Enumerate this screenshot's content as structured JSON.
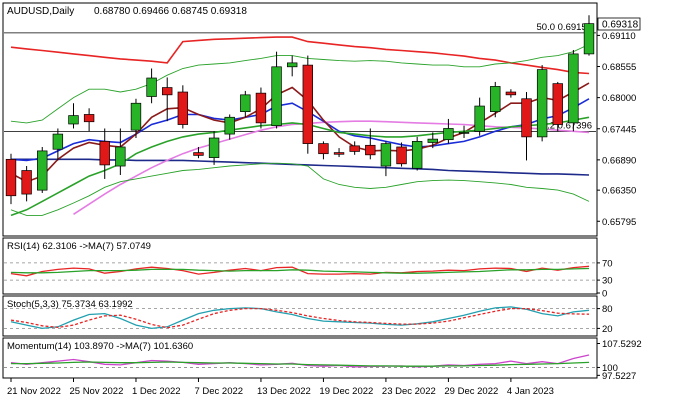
{
  "chart_data": {
    "type": "candlestick",
    "symbol_label": "AUDUSD,Daily",
    "ohlc_label": "0.68780 0.69466 0.68745 0.69318",
    "current_price_label": "0.69318",
    "x_ticks": [
      "21 Nov 2022",
      "25 Nov 2022",
      "1 Dec 2022",
      "7 Dec 2022",
      "13 Dec 2022",
      "19 Dec 2022",
      "23 Dec 2022",
      "29 Dec 2022",
      "4 Jan 2023"
    ],
    "main": {
      "y_ticks": [
        "0.69110",
        "0.68555",
        "0.68000",
        "0.67445",
        "0.66890",
        "0.66350",
        "0.65795"
      ],
      "ylim": [
        0.6555,
        0.6967
      ],
      "fib_levels": [
        {
          "label": "50.0 0.69155",
          "value": 0.69155
        },
        {
          "label": "38.2 0.67396",
          "value": 0.67396
        }
      ],
      "candles": [
        {
          "o": 0.669,
          "h": 0.67,
          "l": 0.661,
          "c": 0.6625
        },
        {
          "o": 0.667,
          "h": 0.6678,
          "l": 0.6615,
          "c": 0.6628
        },
        {
          "o": 0.6635,
          "h": 0.6712,
          "l": 0.663,
          "c": 0.6705
        },
        {
          "o": 0.6708,
          "h": 0.6745,
          "l": 0.6688,
          "c": 0.6735
        },
        {
          "o": 0.6753,
          "h": 0.679,
          "l": 0.6745,
          "c": 0.6768
        },
        {
          "o": 0.677,
          "h": 0.6781,
          "l": 0.674,
          "c": 0.6757
        },
        {
          "o": 0.6722,
          "h": 0.6745,
          "l": 0.6655,
          "c": 0.668
        },
        {
          "o": 0.6678,
          "h": 0.6745,
          "l": 0.6662,
          "c": 0.6712
        },
        {
          "o": 0.6742,
          "h": 0.6798,
          "l": 0.6728,
          "c": 0.679
        },
        {
          "o": 0.6802,
          "h": 0.6852,
          "l": 0.679,
          "c": 0.6835
        },
        {
          "o": 0.6818,
          "h": 0.6836,
          "l": 0.6758,
          "c": 0.6805
        },
        {
          "o": 0.681,
          "h": 0.6822,
          "l": 0.6745,
          "c": 0.6752
        },
        {
          "o": 0.6702,
          "h": 0.6712,
          "l": 0.6692,
          "c": 0.6697
        },
        {
          "o": 0.6693,
          "h": 0.674,
          "l": 0.668,
          "c": 0.6728
        },
        {
          "o": 0.6735,
          "h": 0.677,
          "l": 0.6725,
          "c": 0.6765
        },
        {
          "o": 0.6775,
          "h": 0.6812,
          "l": 0.6765,
          "c": 0.6805
        },
        {
          "o": 0.6808,
          "h": 0.6818,
          "l": 0.6745,
          "c": 0.6755
        },
        {
          "o": 0.675,
          "h": 0.6882,
          "l": 0.6745,
          "c": 0.6855
        },
        {
          "o": 0.6855,
          "h": 0.6875,
          "l": 0.6838,
          "c": 0.6862
        },
        {
          "o": 0.6858,
          "h": 0.6875,
          "l": 0.67,
          "c": 0.6718
        },
        {
          "o": 0.6718,
          "h": 0.6722,
          "l": 0.669,
          "c": 0.67
        },
        {
          "o": 0.6702,
          "h": 0.671,
          "l": 0.6694,
          "c": 0.6699
        },
        {
          "o": 0.6714,
          "h": 0.6722,
          "l": 0.6698,
          "c": 0.6704
        },
        {
          "o": 0.6715,
          "h": 0.6745,
          "l": 0.669,
          "c": 0.6698
        },
        {
          "o": 0.6678,
          "h": 0.6722,
          "l": 0.666,
          "c": 0.6718
        },
        {
          "o": 0.6712,
          "h": 0.672,
          "l": 0.6677,
          "c": 0.6682
        },
        {
          "o": 0.6674,
          "h": 0.673,
          "l": 0.667,
          "c": 0.6722
        },
        {
          "o": 0.672,
          "h": 0.6738,
          "l": 0.671,
          "c": 0.6726
        },
        {
          "o": 0.6725,
          "h": 0.6762,
          "l": 0.6718,
          "c": 0.6745
        },
        {
          "o": 0.6738,
          "h": 0.675,
          "l": 0.6728,
          "c": 0.6738
        },
        {
          "o": 0.674,
          "h": 0.68,
          "l": 0.6732,
          "c": 0.6785
        },
        {
          "o": 0.6775,
          "h": 0.6828,
          "l": 0.6765,
          "c": 0.682
        },
        {
          "o": 0.681,
          "h": 0.6815,
          "l": 0.68,
          "c": 0.6805
        },
        {
          "o": 0.6798,
          "h": 0.681,
          "l": 0.6688,
          "c": 0.673
        },
        {
          "o": 0.673,
          "h": 0.6858,
          "l": 0.6722,
          "c": 0.685
        },
        {
          "o": 0.6825,
          "h": 0.6828,
          "l": 0.674,
          "c": 0.6752
        },
        {
          "o": 0.6755,
          "h": 0.6885,
          "l": 0.674,
          "c": 0.6878
        },
        {
          "o": 0.6878,
          "h": 0.6947,
          "l": 0.6875,
          "c": 0.6932
        }
      ],
      "lines": [
        {
          "name": "red",
          "color": "#e82424",
          "values": [
            0.689,
            0.6887,
            0.6884,
            0.6881,
            0.6878,
            0.6875,
            0.6872,
            0.6869,
            0.6867,
            0.6865,
            0.6862,
            0.69,
            0.6902,
            0.6904,
            0.6905,
            0.6906,
            0.6907,
            0.6908,
            0.6908,
            0.69,
            0.6897,
            0.6894,
            0.6891,
            0.6889,
            0.6886,
            0.6884,
            0.6882,
            0.688,
            0.6877,
            0.6874,
            0.687,
            0.6867,
            0.6862,
            0.6858,
            0.6854,
            0.685,
            0.6845,
            0.6843
          ]
        },
        {
          "name": "navy",
          "color": "#1e2a8a",
          "values": [
            0.669,
            0.669,
            0.669,
            0.669,
            0.669,
            0.669,
            0.6689,
            0.6689,
            0.6688,
            0.6688,
            0.6688,
            0.6688,
            0.6687,
            0.6686,
            0.6685,
            0.6684,
            0.6683,
            0.6682,
            0.6681,
            0.668,
            0.6679,
            0.6678,
            0.6677,
            0.6676,
            0.6675,
            0.6674,
            0.6673,
            0.6672,
            0.667,
            0.6669,
            0.6668,
            0.6667,
            0.6666,
            0.6665,
            0.6664,
            0.6664,
            0.6663,
            0.6662
          ]
        },
        {
          "name": "violet",
          "color": "#e47ce4",
          "values": [
            null,
            null,
            null,
            null,
            0.6592,
            0.661,
            0.6628,
            0.6645,
            0.666,
            0.6675,
            0.6688,
            0.67,
            0.671,
            0.6718,
            0.6726,
            0.6734,
            0.6742,
            0.6748,
            0.6752,
            0.6754,
            0.6756,
            0.6757,
            0.6758,
            0.6758,
            0.6757,
            0.6756,
            0.6755,
            0.6754,
            0.6753,
            0.6752,
            0.675,
            0.6748,
            0.6747,
            0.6746,
            0.6744,
            0.6742,
            0.674,
            0.6738
          ]
        },
        {
          "name": "blue",
          "color": "#1a2cd8",
          "values": [
            0.669,
            0.6688,
            0.6692,
            0.6705,
            0.6718,
            0.6725,
            0.6722,
            0.672,
            0.6735,
            0.6752,
            0.676,
            0.677,
            0.677,
            0.6763,
            0.676,
            0.6765,
            0.677,
            0.6785,
            0.679,
            0.6775,
            0.6758,
            0.674,
            0.6732,
            0.6728,
            0.6722,
            0.6716,
            0.6712,
            0.6714,
            0.6718,
            0.6722,
            0.673,
            0.674,
            0.6748,
            0.6752,
            0.6762,
            0.6768,
            0.6782,
            0.6798
          ]
        },
        {
          "name": "maroon",
          "color": "#8b1a1a",
          "values": [
            0.6665,
            0.665,
            0.666,
            0.669,
            0.671,
            0.672,
            0.6715,
            0.6712,
            0.6735,
            0.6765,
            0.678,
            0.6782,
            0.677,
            0.676,
            0.6755,
            0.6765,
            0.678,
            0.6805,
            0.6818,
            0.6795,
            0.676,
            0.673,
            0.6712,
            0.6705,
            0.6706,
            0.6705,
            0.6708,
            0.6715,
            0.6728,
            0.6738,
            0.6755,
            0.6772,
            0.679,
            0.679,
            0.68,
            0.6795,
            0.681,
            0.6826
          ]
        },
        {
          "name": "green",
          "color": "#2aa22a",
          "values": [
            0.659,
            0.66,
            0.6615,
            0.663,
            0.6645,
            0.666,
            0.667,
            0.6682,
            0.67,
            0.6712,
            0.6722,
            0.673,
            0.6735,
            0.6738,
            0.6742,
            0.6746,
            0.675,
            0.6752,
            0.6755,
            0.6752,
            0.6745,
            0.6738,
            0.6735,
            0.6732,
            0.673,
            0.673,
            0.6732,
            0.6735,
            0.6738,
            0.674,
            0.6742,
            0.6745,
            0.6748,
            0.675,
            0.6752,
            0.6755,
            0.676,
            0.6765
          ]
        },
        {
          "name": "bb-upper",
          "color": "#2aa22a",
          "values": [
            0.6758,
            0.6755,
            0.676,
            0.678,
            0.68,
            0.6815,
            0.6815,
            0.681,
            0.6815,
            0.6825,
            0.684,
            0.6852,
            0.6858,
            0.686,
            0.6862,
            0.6866,
            0.687,
            0.6875,
            0.6875,
            0.687,
            0.6868,
            0.6866,
            0.6865,
            0.6866,
            0.6865,
            0.6862,
            0.686,
            0.6858,
            0.6858,
            0.6855,
            0.6855,
            0.686,
            0.6862,
            0.6866,
            0.6872,
            0.6875,
            0.6882,
            0.6895
          ]
        },
        {
          "name": "bb-lower",
          "color": "#2aa22a",
          "values": [
            0.66,
            0.659,
            0.659,
            0.66,
            0.6612,
            0.6625,
            0.664,
            0.665,
            0.6655,
            0.666,
            0.6665,
            0.667,
            0.6672,
            0.6675,
            0.6678,
            0.668,
            0.6682,
            0.6683,
            0.6682,
            0.6678,
            0.6655,
            0.6645,
            0.664,
            0.6638,
            0.664,
            0.6645,
            0.665,
            0.6652,
            0.6653,
            0.6652,
            0.665,
            0.6648,
            0.6645,
            0.664,
            0.6638,
            0.6635,
            0.6628,
            0.6615
          ]
        }
      ]
    },
    "rsi": {
      "label": "RSI(14) 62.3106  ->MA(7) 57.0749",
      "y_ticks": [
        "70",
        "30",
        "0"
      ],
      "ylim": [
        0,
        100
      ],
      "levels": [
        70,
        30
      ],
      "series": [
        {
          "name": "RSI",
          "color": "#e82424",
          "values": [
            45,
            40,
            50,
            55,
            58,
            56,
            46,
            50,
            56,
            60,
            57,
            52,
            44,
            48,
            53,
            57,
            52,
            59,
            60,
            45,
            44,
            44,
            45,
            44,
            48,
            47,
            50,
            51,
            53,
            52,
            56,
            58,
            57,
            50,
            58,
            53,
            59,
            62
          ]
        },
        {
          "name": "MA",
          "color": "#2aa22a",
          "values": [
            48,
            47,
            47,
            48,
            50,
            52,
            52,
            52,
            53,
            55,
            55,
            55,
            53,
            52,
            51,
            52,
            52,
            52,
            54,
            53,
            51,
            50,
            49,
            48,
            47,
            46,
            46,
            47,
            48,
            49,
            50,
            52,
            54,
            54,
            55,
            55,
            56,
            57
          ]
        }
      ]
    },
    "stoch": {
      "label": "Stoch(5,3,3) 75.3734 63.1992",
      "y_ticks": [
        "80",
        "20"
      ],
      "ylim": [
        0,
        100
      ],
      "levels": [
        80,
        20
      ],
      "series": [
        {
          "name": "Main",
          "color": "#22a0b0",
          "values": [
            40,
            30,
            20,
            25,
            45,
            62,
            65,
            50,
            30,
            20,
            25,
            45,
            65,
            75,
            80,
            82,
            80,
            70,
            62,
            50,
            42,
            40,
            38,
            36,
            32,
            30,
            34,
            40,
            50,
            60,
            72,
            82,
            85,
            78,
            65,
            58,
            70,
            75
          ]
        },
        {
          "name": "Signal",
          "color": "#e82424",
          "values": [
            45,
            38,
            28,
            23,
            30,
            45,
            58,
            60,
            48,
            32,
            22,
            30,
            48,
            65,
            75,
            80,
            80,
            75,
            68,
            58,
            50,
            44,
            40,
            38,
            35,
            33,
            33,
            36,
            42,
            52,
            62,
            72,
            80,
            80,
            74,
            66,
            64,
            63
          ]
        }
      ]
    },
    "momentum": {
      "label": "Momentum(14) 103.8970  ->MA(7) 101.6360",
      "y_ticks": [
        "107.5292",
        "100",
        "97.5227"
      ],
      "ylim": [
        97.0,
        108.0
      ],
      "levels": [
        100
      ],
      "series": [
        {
          "name": "Momentum",
          "color": "#cc44cc",
          "values": [
            101.5,
            101.0,
            101.5,
            102.0,
            102.5,
            101.8,
            101.0,
            100.8,
            101.5,
            102.2,
            102.0,
            101.6,
            101.0,
            101.2,
            101.5,
            101.2,
            100.8,
            101.0,
            101.3,
            100.6,
            100.4,
            100.6,
            100.2,
            100.3,
            100.4,
            100.5,
            100.2,
            100.4,
            100.8,
            100.6,
            101.0,
            101.2,
            102.0,
            101.2,
            101.8,
            101.2,
            102.8,
            103.9
          ]
        },
        {
          "name": "MA",
          "color": "#2aa22a",
          "values": [
            101.2,
            101.2,
            101.3,
            101.4,
            101.6,
            101.7,
            101.6,
            101.5,
            101.5,
            101.6,
            101.7,
            101.6,
            101.5,
            101.4,
            101.4,
            101.3,
            101.2,
            101.1,
            101.1,
            100.9,
            100.8,
            100.7,
            100.6,
            100.5,
            100.5,
            100.4,
            100.4,
            100.4,
            100.5,
            100.5,
            100.6,
            100.7,
            100.9,
            101.0,
            101.1,
            101.2,
            101.4,
            101.6
          ]
        }
      ]
    }
  }
}
